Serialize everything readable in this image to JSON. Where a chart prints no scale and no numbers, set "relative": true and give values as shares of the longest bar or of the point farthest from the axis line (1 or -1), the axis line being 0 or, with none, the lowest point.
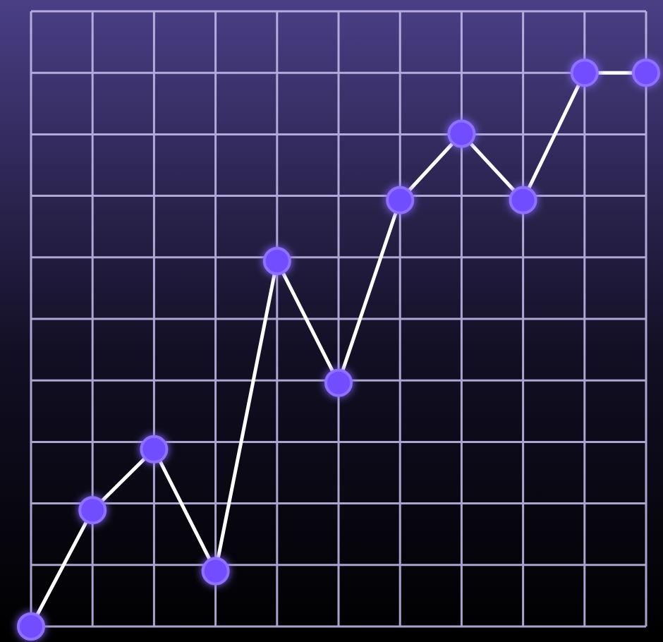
{
  "chart_data": {
    "type": "line",
    "relative": true,
    "categories": [
      null,
      null,
      null,
      null,
      null,
      null,
      null,
      null,
      null,
      null,
      null
    ],
    "series": [
      {
        "color": "#ffffff",
        "values": [
          0,
          0.21,
          0.32,
          0.1,
          0.66,
          0.44,
          0.77,
          0.89,
          0.77,
          1,
          1
        ]
      }
    ],
    "grid": true,
    "marker": "circle",
    "line_style": "solid"
  }
}
